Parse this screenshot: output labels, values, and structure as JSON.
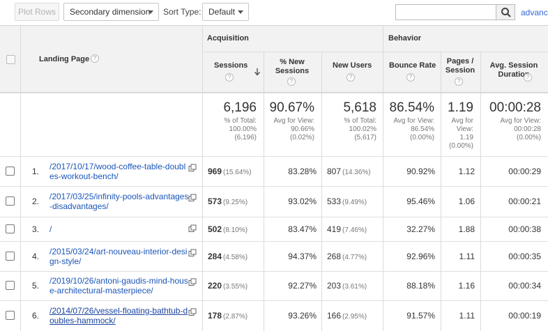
{
  "toolbar": {
    "plot_rows": "Plot Rows",
    "secondary_dimension": "Secondary dimension",
    "sort_type_label": "Sort Type:",
    "sort_type_value": "Default",
    "search_value": "",
    "advanced_link": "advanc"
  },
  "headers": {
    "landing_page": "Landing Page",
    "acquisition": "Acquisition",
    "behavior": "Behavior",
    "sessions": "Sessions",
    "new_sessions": "% New Sessions",
    "new_users": "New Users",
    "bounce_rate": "Bounce Rate",
    "pages_session": "Pages / Session",
    "avg_duration": "Avg. Session Duration"
  },
  "totals": {
    "sessions": {
      "value": "6,196",
      "sub": "% of Total:\n100.00%\n(6,196)"
    },
    "new_sessions": {
      "value": "90.67%",
      "sub": "Avg for View:\n90.66%\n(0.02%)"
    },
    "new_users": {
      "value": "5,618",
      "sub": "% of Total:\n100.02%\n(5,617)"
    },
    "bounce_rate": {
      "value": "86.54%",
      "sub": "Avg for View:\n86.54%\n(0.00%)"
    },
    "pages_session": {
      "value": "1.19",
      "sub": "Avg for\nView:\n1.19\n(0.00%)"
    },
    "avg_duration": {
      "value": "00:00:28",
      "sub": "Avg for View:\n00:00:28\n(0.00%)"
    }
  },
  "rows": [
    {
      "rank": "1.",
      "page": "/2017/10/17/wood-coffee-table-doubles-workout-bench/",
      "sessions": "969",
      "sessions_pct": "(15.64%)",
      "new_sessions": "83.28%",
      "new_users": "807",
      "new_users_pct": "(14.36%)",
      "bounce_rate": "90.92%",
      "pages_session": "1.12",
      "avg_duration": "00:00:29"
    },
    {
      "rank": "2.",
      "page": "/2017/03/25/infinity-pools-advantages-disadvantages/",
      "sessions": "573",
      "sessions_pct": "(9.25%)",
      "new_sessions": "93.02%",
      "new_users": "533",
      "new_users_pct": "(9.49%)",
      "bounce_rate": "95.46%",
      "pages_session": "1.06",
      "avg_duration": "00:00:21"
    },
    {
      "rank": "3.",
      "page": "/",
      "sessions": "502",
      "sessions_pct": "(8.10%)",
      "new_sessions": "83.47%",
      "new_users": "419",
      "new_users_pct": "(7.46%)",
      "bounce_rate": "32.27%",
      "pages_session": "1.88",
      "avg_duration": "00:00:38"
    },
    {
      "rank": "4.",
      "page": "/2015/03/24/art-nouveau-interior-design-style/",
      "sessions": "284",
      "sessions_pct": "(4.58%)",
      "new_sessions": "94.37%",
      "new_users": "268",
      "new_users_pct": "(4.77%)",
      "bounce_rate": "92.96%",
      "pages_session": "1.11",
      "avg_duration": "00:00:35"
    },
    {
      "rank": "5.",
      "page": "/2019/10/26/antoni-gaudis-mind-house-architectural-masterpiece/",
      "sessions": "220",
      "sessions_pct": "(3.55%)",
      "new_sessions": "92.27%",
      "new_users": "203",
      "new_users_pct": "(3.61%)",
      "bounce_rate": "88.18%",
      "pages_session": "1.16",
      "avg_duration": "00:00:34"
    },
    {
      "rank": "6.",
      "page": "/2014/07/26/vessel-floating-bathtub-doubles-hammock/",
      "sessions": "178",
      "sessions_pct": "(2.87%)",
      "new_sessions": "93.26%",
      "new_users": "166",
      "new_users_pct": "(2.95%)",
      "bounce_rate": "91.57%",
      "pages_session": "1.11",
      "avg_duration": "00:00:19"
    }
  ]
}
